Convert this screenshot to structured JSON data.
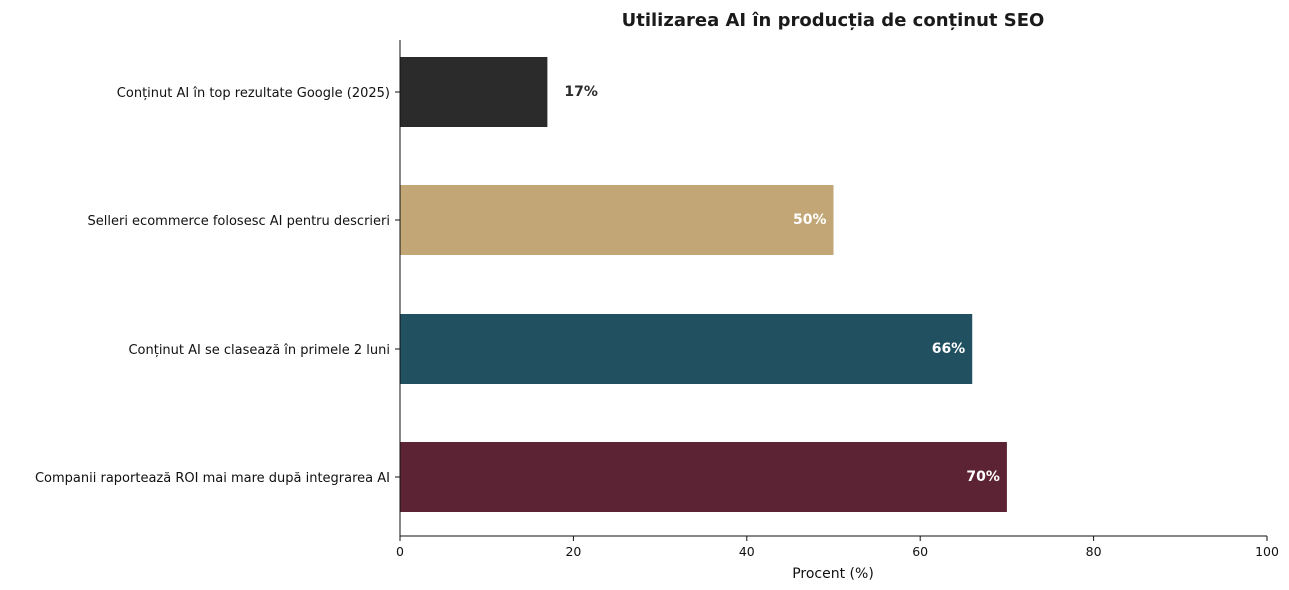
{
  "chart_data": {
    "type": "bar",
    "orientation": "horizontal",
    "title": "Utilizarea AI în producția de conținut SEO",
    "xlabel": "Procent (%)",
    "ylabel": "",
    "xlim": [
      0,
      100
    ],
    "xticks": [
      0,
      20,
      40,
      60,
      80,
      100
    ],
    "grid": false,
    "categories": [
      "Conținut AI în top rezultate Google (2025)",
      "Selleri ecommerce folosesc AI pentru descrieri",
      "Conținut AI se clasează în primele 2 luni",
      "Companii raportează ROI mai mare după integrarea AI"
    ],
    "values": [
      17,
      50,
      66,
      70
    ],
    "value_labels": [
      "17%",
      "50%",
      "66%",
      "70%"
    ],
    "colors": [
      "#2b2b2b",
      "#c2a675",
      "#215060",
      "#5c2335"
    ],
    "value_label_colors": [
      "#2b2b2b",
      "#ffffff",
      "#ffffff",
      "#ffffff"
    ]
  }
}
